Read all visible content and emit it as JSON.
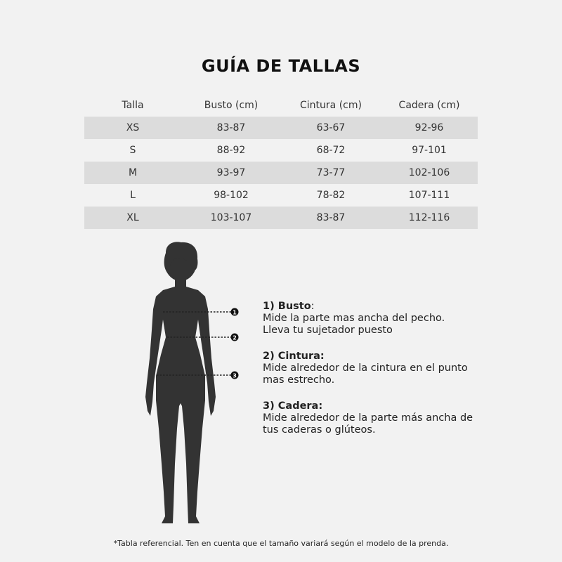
{
  "title": "GUÍA DE TALLAS",
  "table": {
    "headers": [
      "Talla",
      "Busto (cm)",
      "Cintura (cm)",
      "Cadera (cm)"
    ],
    "rows": [
      [
        "XS",
        "83-87",
        "63-67",
        "92-96"
      ],
      [
        "S",
        "88-92",
        "68-72",
        "97-101"
      ],
      [
        "M",
        "93-97",
        "73-77",
        "102-106"
      ],
      [
        "L",
        "98-102",
        "78-82",
        "107-111"
      ],
      [
        "XL",
        "103-107",
        "83-87",
        "112-116"
      ]
    ]
  },
  "markers": [
    "1",
    "2",
    "3"
  ],
  "instructions": [
    {
      "heading": "1)   Busto",
      "suffix": ":",
      "lines": [
        "Mide la parte mas ancha del pecho.",
        "Lleva tu sujetador puesto"
      ]
    },
    {
      "heading": "2) Cintura:",
      "suffix": "",
      "lines": [
        "Mide alrededor de la cintura en el punto",
        "mas estrecho."
      ]
    },
    {
      "heading": "3) Cadera:",
      "suffix": "",
      "lines": [
        "Mide alrededor de la parte más ancha de",
        "tus caderas o glúteos."
      ]
    }
  ],
  "footnote": "*Tabla referencial. Ten en cuenta que el tamaño variará según el modelo de la prenda.",
  "colors": {
    "background": "#f2f2f2",
    "stripe": "#dcdcdc",
    "silhouette": "#333333"
  }
}
